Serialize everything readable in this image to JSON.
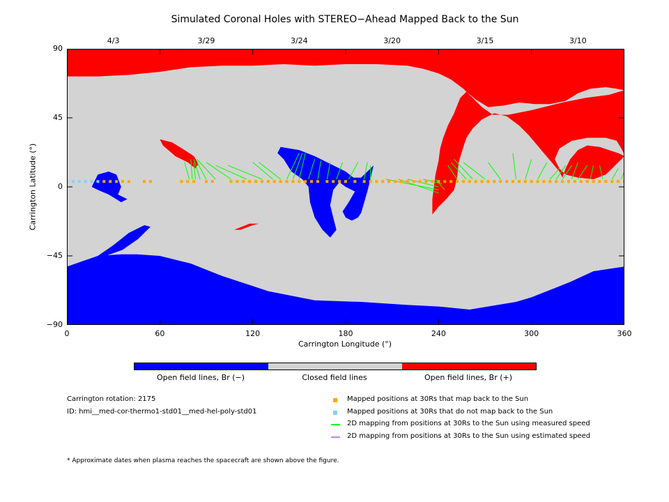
{
  "title": "Simulated Coronal Holes with STEREO−Ahead Mapped Back to the Sun",
  "chart_data": {
    "type": "map",
    "xlabel": "Carrington Longitude (°)",
    "ylabel": "Carrington Latitude (°)",
    "xlim": [
      0,
      360
    ],
    "ylim": [
      -90,
      90
    ],
    "x_ticks": [
      "0",
      "60",
      "120",
      "180",
      "240",
      "300",
      "360"
    ],
    "y_ticks": [
      "90",
      "45",
      "0",
      "−45",
      "−90"
    ],
    "top_axis_dates": [
      "4/3",
      "3/29",
      "3/24",
      "3/20",
      "3/15",
      "3/10"
    ],
    "top_axis_date_longitudes": [
      30,
      90,
      150,
      210,
      270,
      330
    ],
    "regions": {
      "positive_open": [
        [
          [
            0,
            90
          ],
          [
            360,
            90
          ],
          [
            360,
            63
          ],
          [
            355,
            64
          ],
          [
            348,
            65
          ],
          [
            338,
            64
          ],
          [
            330,
            61
          ],
          [
            322,
            56
          ],
          [
            312,
            54
          ],
          [
            302,
            54
          ],
          [
            292,
            55
          ],
          [
            282,
            53
          ],
          [
            272,
            52
          ],
          [
            264,
            57
          ],
          [
            258,
            62
          ],
          [
            254,
            58
          ],
          [
            250,
            48
          ],
          [
            246,
            40
          ],
          [
            243,
            32
          ],
          [
            241,
            25
          ],
          [
            240,
            17
          ],
          [
            238,
            8
          ],
          [
            237,
            0
          ],
          [
            236,
            -8
          ],
          [
            236,
            -18
          ],
          [
            240,
            -13
          ],
          [
            245,
            -8
          ],
          [
            250,
            -2
          ],
          [
            252,
            6
          ],
          [
            253,
            16
          ],
          [
            256,
            26
          ],
          [
            258,
            32
          ],
          [
            262,
            38
          ],
          [
            268,
            44
          ],
          [
            276,
            48
          ],
          [
            284,
            46
          ],
          [
            292,
            40
          ],
          [
            298,
            34
          ],
          [
            303,
            28
          ],
          [
            308,
            22
          ],
          [
            313,
            16
          ],
          [
            318,
            10
          ],
          [
            320,
            6
          ],
          [
            322,
            12
          ],
          [
            325,
            18
          ],
          [
            330,
            24
          ],
          [
            336,
            27
          ],
          [
            344,
            26
          ],
          [
            350,
            24
          ],
          [
            356,
            22
          ],
          [
            360,
            20
          ],
          [
            354,
            14
          ],
          [
            348,
            8
          ],
          [
            340,
            5
          ],
          [
            330,
            6
          ],
          [
            322,
            8
          ],
          [
            318,
            12
          ],
          [
            315,
            18
          ],
          [
            318,
            25
          ],
          [
            326,
            30
          ],
          [
            336,
            32
          ],
          [
            348,
            32
          ],
          [
            355,
            30
          ],
          [
            358,
            25
          ],
          [
            360,
            21
          ],
          [
            360,
            63
          ],
          [
            350,
            60
          ],
          [
            335,
            58
          ],
          [
            320,
            55
          ],
          [
            300,
            50
          ],
          [
            285,
            47
          ],
          [
            275,
            47
          ],
          [
            268,
            52
          ],
          [
            262,
            58
          ],
          [
            256,
            64
          ],
          [
            248,
            70
          ],
          [
            240,
            74
          ],
          [
            230,
            77
          ],
          [
            220,
            79
          ],
          [
            200,
            80
          ],
          [
            180,
            80
          ],
          [
            160,
            79
          ],
          [
            140,
            80
          ],
          [
            120,
            79
          ],
          [
            100,
            79
          ],
          [
            80,
            78
          ],
          [
            60,
            75
          ],
          [
            40,
            73
          ],
          [
            20,
            72
          ],
          [
            0,
            72
          ]
        ]
      ],
      "positive_small": [
        [
          [
            60,
            31
          ],
          [
            68,
            29
          ],
          [
            76,
            24
          ],
          [
            82,
            20
          ],
          [
            85,
            15
          ],
          [
            83,
            12
          ],
          [
            78,
            16
          ],
          [
            70,
            20
          ],
          [
            62,
            27
          ],
          [
            60,
            31
          ]
        ],
        [
          [
            108,
            -28
          ],
          [
            118,
            -24
          ],
          [
            124,
            -24
          ],
          [
            120,
            -25
          ],
          [
            112,
            -28
          ],
          [
            108,
            -28
          ]
        ]
      ],
      "negative_open": [
        [
          [
            0,
            -52
          ],
          [
            20,
            -45
          ],
          [
            35,
            -44
          ],
          [
            45,
            -44
          ],
          [
            60,
            -45
          ],
          [
            80,
            -50
          ],
          [
            100,
            -58
          ],
          [
            130,
            -68
          ],
          [
            160,
            -74
          ],
          [
            190,
            -75
          ],
          [
            220,
            -77
          ],
          [
            240,
            -78
          ],
          [
            260,
            -80
          ],
          [
            290,
            -75
          ],
          [
            300,
            -72
          ],
          [
            315,
            -66
          ],
          [
            325,
            -62
          ],
          [
            340,
            -55
          ],
          [
            360,
            -52
          ],
          [
            360,
            -90
          ],
          [
            0,
            -90
          ]
        ],
        [
          [
            20,
            -45
          ],
          [
            30,
            -38
          ],
          [
            40,
            -30
          ],
          [
            50,
            -25
          ],
          [
            54,
            -26
          ],
          [
            46,
            -34
          ],
          [
            36,
            -41
          ],
          [
            25,
            -45
          ],
          [
            20,
            -45
          ]
        ],
        [
          [
            16,
            0
          ],
          [
            20,
            8
          ],
          [
            27,
            10
          ],
          [
            32,
            8
          ],
          [
            35,
            0
          ],
          [
            33,
            -5
          ],
          [
            39,
            -8
          ],
          [
            35,
            -10
          ],
          [
            27,
            -5
          ],
          [
            20,
            -2
          ],
          [
            16,
            0
          ]
        ],
        [
          [
            138,
            26
          ],
          [
            150,
            24
          ],
          [
            160,
            20
          ],
          [
            170,
            15
          ],
          [
            180,
            10
          ],
          [
            185,
            6
          ],
          [
            190,
            6
          ],
          [
            194,
            10
          ],
          [
            198,
            14
          ],
          [
            196,
            5
          ],
          [
            194,
            -3
          ],
          [
            192,
            -10
          ],
          [
            190,
            -17
          ],
          [
            188,
            -20
          ],
          [
            184,
            -22
          ],
          [
            180,
            -20
          ],
          [
            178,
            -16
          ],
          [
            182,
            -10
          ],
          [
            186,
            -3
          ],
          [
            180,
            0
          ],
          [
            176,
            3
          ],
          [
            172,
            -2
          ],
          [
            170,
            -12
          ],
          [
            172,
            -20
          ],
          [
            174,
            -28
          ],
          [
            170,
            -33
          ],
          [
            165,
            -28
          ],
          [
            160,
            -20
          ],
          [
            157,
            -10
          ],
          [
            156,
            0
          ],
          [
            152,
            5
          ],
          [
            145,
            10
          ],
          [
            140,
            18
          ],
          [
            136,
            22
          ],
          [
            138,
            26
          ]
        ]
      ]
    },
    "sample_longitudes_orange": [
      24,
      28,
      32,
      36,
      40,
      50,
      54,
      74,
      78,
      82,
      90,
      94,
      106,
      110,
      114,
      118,
      122,
      126,
      130,
      134,
      138,
      142,
      146,
      150,
      154,
      158,
      162,
      168,
      172,
      176,
      180,
      186,
      192,
      196,
      200,
      204,
      208,
      212,
      216,
      220,
      224,
      228,
      232,
      236,
      240,
      244,
      248,
      252,
      256,
      260,
      264,
      268,
      272,
      276,
      280,
      284,
      288,
      292,
      296,
      300,
      304,
      308,
      312,
      316,
      320,
      324,
      328,
      332,
      336,
      340,
      344,
      348,
      352,
      356,
      360
    ],
    "sample_longitudes_blue": [
      0,
      4,
      8,
      12,
      16,
      20
    ],
    "footpoints_green": [
      [
        [
          79,
          5
        ],
        [
          76,
          16
        ]
      ],
      [
        [
          81,
          5
        ],
        [
          80,
          18
        ]
      ],
      [
        [
          83,
          5
        ],
        [
          82,
          16
        ]
      ],
      [
        [
          86,
          5
        ],
        [
          82,
          18
        ]
      ],
      [
        [
          90,
          5
        ],
        [
          84,
          16
        ]
      ],
      [
        [
          96,
          5
        ],
        [
          84,
          18
        ]
      ],
      [
        [
          106,
          5
        ],
        [
          90,
          16
        ]
      ],
      [
        [
          116,
          5
        ],
        [
          96,
          14
        ]
      ],
      [
        [
          126,
          5
        ],
        [
          104,
          14
        ]
      ],
      [
        [
          133,
          5
        ],
        [
          120,
          16
        ]
      ],
      [
        [
          138,
          5
        ],
        [
          124,
          16
        ]
      ],
      [
        [
          142,
          5
        ],
        [
          150,
          22
        ]
      ],
      [
        [
          146,
          5
        ],
        [
          152,
          22
        ]
      ],
      [
        [
          150,
          5
        ],
        [
          154,
          22
        ]
      ],
      [
        [
          156,
          5
        ],
        [
          160,
          18
        ]
      ],
      [
        [
          162,
          5
        ],
        [
          164,
          17
        ]
      ],
      [
        [
          168,
          5
        ],
        [
          170,
          16
        ]
      ],
      [
        [
          174,
          5
        ],
        [
          178,
          16
        ]
      ],
      [
        [
          182,
          5
        ],
        [
          188,
          16
        ]
      ],
      [
        [
          192,
          5
        ],
        [
          194,
          16
        ]
      ],
      [
        [
          196,
          5
        ],
        [
          196,
          14
        ]
      ],
      [
        [
          206,
          5
        ],
        [
          240,
          -2
        ]
      ],
      [
        [
          214,
          5
        ],
        [
          240,
          -4
        ]
      ],
      [
        [
          220,
          5
        ],
        [
          240,
          0
        ]
      ],
      [
        [
          230,
          5
        ],
        [
          242,
          2
        ]
      ],
      [
        [
          238,
          5
        ],
        [
          244,
          -2
        ]
      ],
      [
        [
          252,
          5
        ],
        [
          246,
          14
        ]
      ],
      [
        [
          258,
          5
        ],
        [
          248,
          16
        ]
      ],
      [
        [
          262,
          5
        ],
        [
          250,
          18
        ]
      ],
      [
        [
          270,
          5
        ],
        [
          256,
          16
        ]
      ],
      [
        [
          280,
          5
        ],
        [
          272,
          16
        ]
      ],
      [
        [
          290,
          5
        ],
        [
          288,
          22
        ]
      ],
      [
        [
          296,
          5
        ],
        [
          300,
          18
        ]
      ],
      [
        [
          304,
          5
        ],
        [
          310,
          16
        ]
      ],
      [
        [
          312,
          5
        ],
        [
          318,
          12
        ]
      ],
      [
        [
          316,
          5
        ],
        [
          322,
          14
        ]
      ],
      [
        [
          320,
          5
        ],
        [
          326,
          14
        ]
      ],
      [
        [
          326,
          5
        ],
        [
          330,
          16
        ]
      ],
      [
        [
          330,
          5
        ],
        [
          336,
          14
        ]
      ],
      [
        [
          338,
          5
        ],
        [
          340,
          14
        ]
      ],
      [
        [
          346,
          5
        ],
        [
          344,
          14
        ]
      ],
      [
        [
          352,
          5
        ],
        [
          356,
          12
        ]
      ],
      [
        [
          358,
          5
        ],
        [
          360,
          10
        ]
      ]
    ]
  },
  "colorbar": {
    "colors": [
      "#0000ff",
      "#d3d3d3",
      "#ff0000"
    ],
    "labels": [
      "Open field lines, Br (−)",
      "Closed field lines",
      "Open field lines, Br (+)"
    ]
  },
  "info": {
    "rotation": "Carrington rotation: 2175",
    "id": "ID: hmi__med-cor-thermo1-std01__med-hel-poly-std01"
  },
  "legend": [
    {
      "label": "Mapped positions at 30Rs that map back to the Sun",
      "color": "#ffa500",
      "kind": "square"
    },
    {
      "label": "Mapped positions at 30Rs that do not map back to the Sun",
      "color": "#87cefa",
      "kind": "square"
    },
    {
      "label": "2D mapping from positions at 30Rs to the Sun using measured speed",
      "color": "#00ff00",
      "kind": "line"
    },
    {
      "label": "2D mapping from positions at 30Rs to the Sun using estimated speed",
      "color": "#c080ff",
      "kind": "line"
    }
  ],
  "footnote": "* Approximate dates when plasma reaches the spacecraft are shown above the figure.",
  "colors": {
    "positive": "#ff0000",
    "negative": "#0000ff",
    "closed": "#d3d3d3",
    "orange": "#ffa500",
    "lightblue": "#87cefa",
    "green": "#00ff00"
  }
}
